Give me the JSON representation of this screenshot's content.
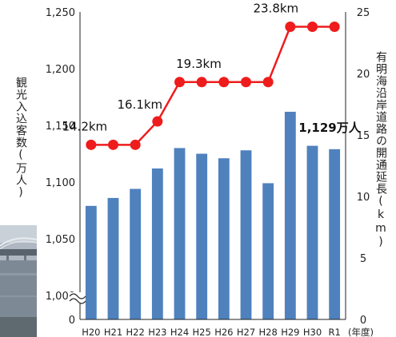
{
  "chart_data": {
    "type": "bar+line",
    "categories": [
      "H20",
      "H21",
      "H22",
      "H23",
      "H24",
      "H25",
      "H26",
      "H27",
      "H28",
      "H29",
      "H30",
      "R1"
    ],
    "x_suffix": "(年度)",
    "bar_series": {
      "values": [
        1079,
        1086,
        1094,
        1112,
        1130,
        1125,
        1121,
        1128,
        1099,
        1162,
        1132,
        1129
      ],
      "color": "#4f81bd"
    },
    "line_series": {
      "values": [
        14.2,
        14.2,
        14.2,
        16.1,
        19.3,
        19.3,
        19.3,
        19.3,
        19.3,
        23.8,
        23.8,
        23.8
      ],
      "color": "#ee1c1c"
    },
    "y_left": {
      "label": "観光入込客数(万人)",
      "ticks": [
        "1,250",
        "1,200",
        "1,150",
        "1,100",
        "1,050",
        "1,000",
        "0"
      ],
      "range_visible": [
        1000,
        1250
      ],
      "axis_break": true
    },
    "y_right": {
      "label": "有明海沿岸道路の開通延長(km)",
      "ticks": [
        "25",
        "20",
        "15",
        "10",
        "5",
        "0"
      ],
      "range": [
        0,
        25
      ]
    },
    "annotations": [
      {
        "text": "14.2km",
        "index": 0
      },
      {
        "text": "16.1km",
        "index": 3
      },
      {
        "text": "19.3km",
        "index": 4
      },
      {
        "text": "23.8km",
        "index": 9
      },
      {
        "text": "1,129万人",
        "index": 11
      }
    ]
  }
}
